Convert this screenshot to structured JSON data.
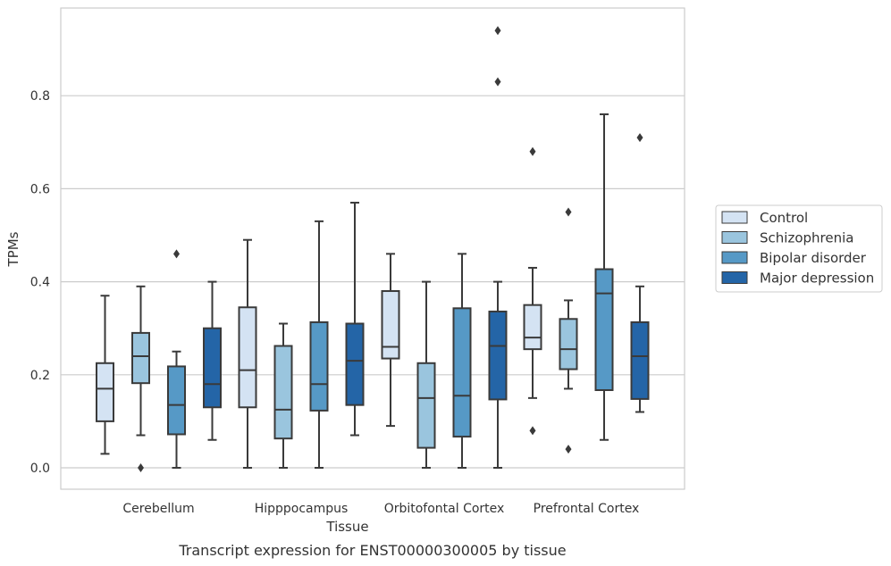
{
  "chart_data": {
    "type": "box",
    "xlabel": "Tissue",
    "ylabel": "TPMs",
    "caption": "Transcript expression for ENST00000300005 by tissue",
    "ylim": [
      -0.045,
      0.995
    ],
    "yticks": [
      "0.0",
      "0.2",
      "0.4",
      "0.6",
      "0.8"
    ],
    "grid": "horizontal",
    "legend_position": "right",
    "categories": [
      "Cerebellum",
      "Hipppocampus",
      "Orbitofontal Cortex",
      "Prefrontal Cortex"
    ],
    "series": [
      {
        "name": "Control",
        "color": "#d4e3f3",
        "boxes": [
          {
            "whislo": 0.03,
            "q1": 0.1,
            "med": 0.17,
            "q3": 0.225,
            "whishi": 0.37,
            "fliers": []
          },
          {
            "whislo": 0.0,
            "q1": 0.13,
            "med": 0.21,
            "q3": 0.345,
            "whishi": 0.49,
            "fliers": []
          },
          {
            "whislo": 0.09,
            "q1": 0.235,
            "med": 0.26,
            "q3": 0.38,
            "whishi": 0.46,
            "fliers": []
          },
          {
            "whislo": 0.15,
            "q1": 0.255,
            "med": 0.28,
            "q3": 0.35,
            "whishi": 0.43,
            "fliers": [
              0.68,
              0.08
            ]
          }
        ]
      },
      {
        "name": "Schizophrenia",
        "color": "#9ac5de",
        "boxes": [
          {
            "whislo": 0.07,
            "q1": 0.182,
            "med": 0.24,
            "q3": 0.29,
            "whishi": 0.39,
            "fliers": [
              0.0
            ]
          },
          {
            "whislo": 0.0,
            "q1": 0.063,
            "med": 0.125,
            "q3": 0.262,
            "whishi": 0.31,
            "fliers": []
          },
          {
            "whislo": 0.0,
            "q1": 0.043,
            "med": 0.15,
            "q3": 0.225,
            "whishi": 0.4,
            "fliers": []
          },
          {
            "whislo": 0.17,
            "q1": 0.212,
            "med": 0.255,
            "q3": 0.32,
            "whishi": 0.36,
            "fliers": [
              0.55,
              0.04
            ]
          }
        ]
      },
      {
        "name": "Bipolar disorder",
        "color": "#5699c6",
        "boxes": [
          {
            "whislo": 0.0,
            "q1": 0.072,
            "med": 0.135,
            "q3": 0.218,
            "whishi": 0.25,
            "fliers": [
              0.46
            ]
          },
          {
            "whislo": 0.0,
            "q1": 0.123,
            "med": 0.18,
            "q3": 0.313,
            "whishi": 0.53,
            "fliers": []
          },
          {
            "whislo": 0.0,
            "q1": 0.067,
            "med": 0.155,
            "q3": 0.343,
            "whishi": 0.46,
            "fliers": []
          },
          {
            "whislo": 0.06,
            "q1": 0.167,
            "med": 0.375,
            "q3": 0.427,
            "whishi": 0.76,
            "fliers": []
          }
        ]
      },
      {
        "name": "Major depression",
        "color": "#2465a7",
        "boxes": [
          {
            "whislo": 0.06,
            "q1": 0.13,
            "med": 0.18,
            "q3": 0.3,
            "whishi": 0.4,
            "fliers": []
          },
          {
            "whislo": 0.07,
            "q1": 0.135,
            "med": 0.23,
            "q3": 0.31,
            "whishi": 0.57,
            "fliers": []
          },
          {
            "whislo": 0.0,
            "q1": 0.147,
            "med": 0.262,
            "q3": 0.336,
            "whishi": 0.4,
            "fliers": [
              0.94,
              0.83
            ]
          },
          {
            "whislo": 0.12,
            "q1": 0.148,
            "med": 0.24,
            "q3": 0.313,
            "whishi": 0.39,
            "fliers": [
              0.71
            ]
          }
        ]
      }
    ]
  }
}
